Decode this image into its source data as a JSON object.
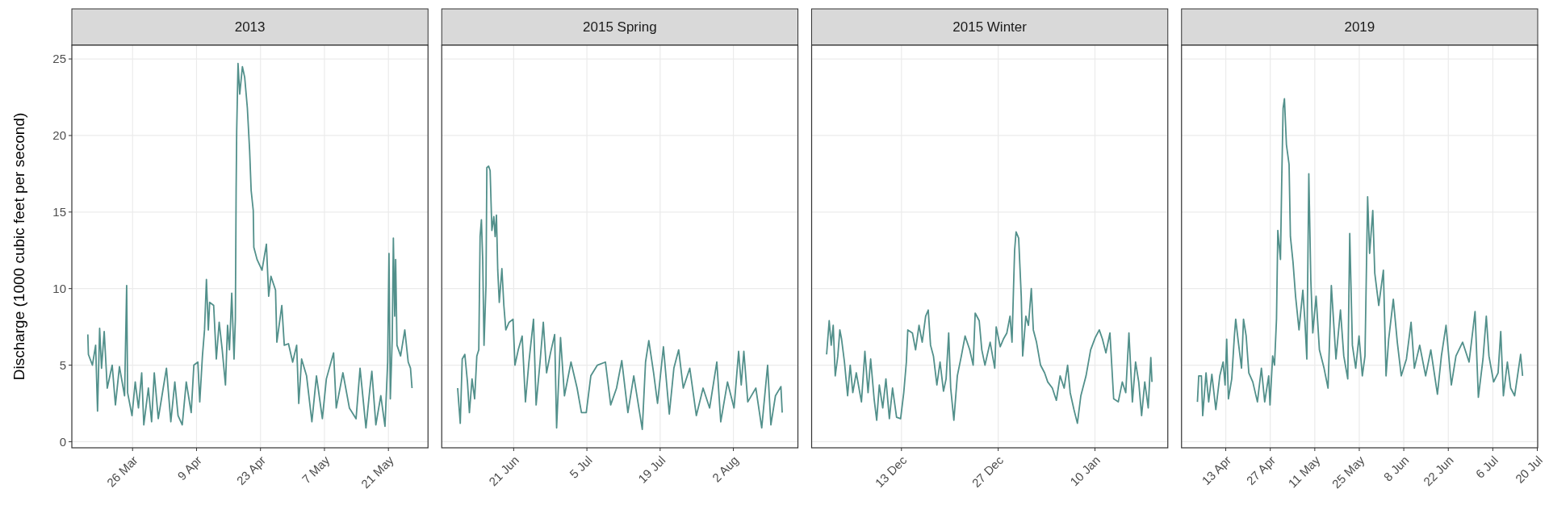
{
  "chart_data": [
    {
      "type": "line",
      "title": "2013",
      "ylabel": "Discharge (1000 cubic feet per second)",
      "color": "#52908b",
      "grid": true,
      "ylim": [
        -0.4,
        25.9
      ],
      "yticks": [
        0,
        5,
        10,
        15,
        20,
        25
      ],
      "xlim": [
        "2013-03-12T17:00",
        "2013-05-29T16:00"
      ],
      "xticks": [
        {
          "value": "2013-03-26",
          "label": "26 Mar"
        },
        {
          "value": "2013-04-09",
          "label": "9 Apr"
        },
        {
          "value": "2013-04-23",
          "label": "23 Apr"
        },
        {
          "value": "2013-05-07",
          "label": "7 May"
        },
        {
          "value": "2013-05-21",
          "label": "21 May"
        }
      ],
      "x": [
        "2013-03-16T05:00",
        "2013-03-16T08:00",
        "2013-03-17T05:00",
        "2013-03-17T22:00",
        "2013-03-18T08:00",
        "2013-03-18T19:00",
        "2013-03-19T05:00",
        "2013-03-19T19:00",
        "2013-03-20T11:00",
        "2013-03-21T13:00",
        "2013-03-22T06:00",
        "2013-03-23T03:00",
        "2013-03-24T06:00",
        "2013-03-24T17:00",
        "2013-03-24T22:00",
        "2013-03-25T21:00",
        "2013-03-26T14:00",
        "2013-03-27T07:00",
        "2013-03-28T00:00",
        "2013-03-28T11:00",
        "2013-03-29T11:00",
        "2013-03-30T04:00",
        "2013-03-30T18:00",
        "2013-03-31T15:00",
        "2013-04-01T17:00",
        "2013-04-02T10:00",
        "2013-04-03T09:00",
        "2013-04-04T06:00",
        "2013-04-04T23:00",
        "2013-04-05T21:00",
        "2013-04-06T18:00",
        "2013-04-07T20:00",
        "2013-04-08T10:00",
        "2013-04-09T07:00",
        "2013-04-09T17:00",
        "2013-04-10T07:00",
        "2013-04-10T18:00",
        "2013-04-11T04:00",
        "2013-04-11T14:00",
        "2013-04-11T21:00",
        "2013-04-12T18:00",
        "2013-04-13T08:00",
        "2013-04-13T23:00",
        "2013-04-14T15:00",
        "2013-04-15T08:00",
        "2013-04-15T19:00",
        "2013-04-16T05:00",
        "2013-04-16T17:00",
        "2013-04-17T05:00",
        "2013-04-17T12:00",
        "2013-04-17T16:00",
        "2013-04-17T19:00",
        "2013-04-18T02:00",
        "2013-04-18T11:00",
        "2013-04-19T01:00",
        "2013-04-19T13:00",
        "2013-04-20T03:00",
        "2013-04-20T15:00",
        "2013-04-20T23:00",
        "2013-04-21T10:00",
        "2013-04-21T13:00",
        "2013-04-22T06:00",
        "2013-04-23T08:00",
        "2013-04-24T07:00",
        "2013-04-24T19:00",
        "2013-04-25T07:00",
        "2013-04-26T07:00",
        "2013-04-26T14:00",
        "2013-04-27T16:00",
        "2013-04-28T05:00",
        "2013-04-29T03:00",
        "2013-04-30T01:00",
        "2013-04-30T22:00",
        "2013-05-01T09:00",
        "2013-05-02T00:00",
        "2013-05-03T02:00",
        "2013-05-04T06:00",
        "2013-05-05T06:00",
        "2013-05-06T13:00",
        "2013-05-07T10:00",
        "2013-05-09T00:00",
        "2013-05-09T14:00",
        "2013-05-11T01:00",
        "2013-05-12T11:00",
        "2013-05-13T22:00",
        "2013-05-14T19:00",
        "2013-05-16T02:00",
        "2013-05-16T23:00",
        "2013-05-17T09:00",
        "2013-05-18T06:00",
        "2013-05-19T08:00",
        "2013-05-20T06:00",
        "2013-05-20T20:00",
        "2013-05-21T03:00",
        "2013-05-21T10:00",
        "2013-05-21T20:00",
        "2013-05-22T02:00",
        "2013-05-22T09:00",
        "2013-05-22T14:00",
        "2013-05-22T21:00",
        "2013-05-23T16:00",
        "2013-05-24T14:00",
        "2013-05-25T08:00",
        "2013-05-25T20:00",
        "2013-05-26T04:00"
      ],
      "values": [
        7.0,
        5.7,
        5.0,
        6.3,
        2.0,
        7.4,
        4.8,
        7.2,
        3.5,
        5.0,
        2.4,
        4.9,
        3.0,
        10.2,
        3.2,
        1.7,
        3.9,
        2.2,
        4.5,
        1.1,
        3.5,
        1.3,
        4.5,
        1.5,
        3.5,
        4.8,
        1.3,
        3.9,
        1.7,
        1.1,
        3.9,
        1.9,
        5.0,
        5.2,
        2.6,
        5.6,
        7.3,
        10.6,
        7.3,
        9.1,
        8.9,
        5.4,
        7.8,
        6.0,
        3.7,
        7.6,
        6.0,
        9.7,
        5.4,
        8.0,
        16.4,
        20.3,
        24.7,
        22.7,
        24.5,
        23.8,
        21.8,
        19.0,
        16.4,
        15.1,
        12.7,
        11.9,
        11.2,
        12.9,
        9.5,
        10.8,
        9.9,
        6.5,
        8.9,
        6.3,
        6.4,
        5.2,
        6.3,
        2.5,
        5.4,
        4.3,
        1.3,
        4.3,
        1.5,
        4.1,
        5.8,
        2.2,
        4.5,
        2.2,
        1.5,
        4.8,
        0.9,
        3.5,
        4.6,
        1.1,
        3.0,
        1.0,
        5.2,
        12.3,
        2.8,
        6.7,
        13.3,
        8.2,
        11.9,
        6.3,
        5.6,
        7.3,
        5.2,
        4.8,
        3.5
      ]
    },
    {
      "type": "line",
      "title": "2015 Spring",
      "color": "#52908b",
      "grid": true,
      "tick_labels": "x",
      "ylim": [
        -0.4,
        25.9
      ],
      "yticks": [
        0,
        5,
        10,
        15,
        20,
        25
      ],
      "xlim": [
        "2015-06-07T06:00",
        "2015-08-14T08:00"
      ],
      "xticks": [
        {
          "value": "2015-06-21",
          "label": "21 Jun"
        },
        {
          "value": "2015-07-05",
          "label": "5 Jul"
        },
        {
          "value": "2015-07-19",
          "label": "19 Jul"
        },
        {
          "value": "2015-08-02",
          "label": "2 Aug"
        }
      ],
      "x": [
        "2015-06-10T07:00",
        "2015-06-10T19:00",
        "2015-06-11T04:00",
        "2015-06-11T16:00",
        "2015-06-12T04:00",
        "2015-06-12T13:00",
        "2015-06-13T01:00",
        "2015-06-13T13:00",
        "2015-06-13T23:00",
        "2015-06-14T08:00",
        "2015-06-14T14:00",
        "2015-06-14T20:00",
        "2015-06-15T02:00",
        "2015-06-15T08:00",
        "2015-06-15T17:00",
        "2015-06-15T21:00",
        "2015-06-16T05:00",
        "2015-06-16T12:00",
        "2015-06-16T20:00",
        "2015-06-17T05:00",
        "2015-06-17T11:00",
        "2015-06-17T17:00",
        "2015-06-17T23:00",
        "2015-06-18T06:00",
        "2015-06-18T18:00",
        "2015-06-19T03:00",
        "2015-06-19T12:00",
        "2015-06-20T03:00",
        "2015-06-20T21:00",
        "2015-06-21T06:00",
        "2015-06-21T21:00",
        "2015-06-22T15:00",
        "2015-06-23T06:00",
        "2015-06-23T22:00",
        "2015-06-24T19:00",
        "2015-06-25T07:00",
        "2015-06-26T01:00",
        "2015-06-26T16:00",
        "2015-06-27T07:00",
        "2015-06-28T01:00",
        "2015-06-28T20:00",
        "2015-06-29T05:00",
        "2015-06-29T23:00",
        "2015-06-30T17:00",
        "2015-07-01T23:00",
        "2015-07-03T03:00",
        "2015-07-03T23:00",
        "2015-07-04T21:00",
        "2015-07-05T18:00",
        "2015-07-07T00:00",
        "2015-07-08T13:00",
        "2015-07-09T13:00",
        "2015-07-10T16:00",
        "2015-07-11T16:00",
        "2015-07-12T20:00",
        "2015-07-13T23:00",
        "2015-07-15T14:00",
        "2015-07-16T05:00",
        "2015-07-16T20:00",
        "2015-07-17T18:00",
        "2015-07-18T12:00",
        "2015-07-19T15:00",
        "2015-07-20T18:00",
        "2015-07-21T15:00",
        "2015-07-22T13:00",
        "2015-07-23T10:00",
        "2015-07-24T16:00",
        "2015-07-25T22:00",
        "2015-07-27T05:00",
        "2015-07-28T11:00",
        "2015-07-29T20:00",
        "2015-07-30T14:00",
        "2015-07-31T21:00",
        "2015-08-02T03:00",
        "2015-08-03T00:00",
        "2015-08-03T12:00",
        "2015-08-04T00:00",
        "2015-08-04T18:00",
        "2015-08-06T07:00",
        "2015-08-07T10:00",
        "2015-08-08T13:00",
        "2015-08-09T04:00",
        "2015-08-10T01:00",
        "2015-08-11T02:00",
        "2015-08-11T08:00"
      ],
      "values": [
        3.5,
        1.2,
        5.4,
        5.7,
        3.9,
        1.9,
        4.1,
        2.8,
        5.6,
        6.0,
        13.4,
        14.5,
        11.9,
        6.3,
        10.2,
        17.9,
        18.0,
        17.7,
        13.8,
        14.7,
        13.4,
        14.8,
        11.2,
        9.1,
        11.3,
        8.9,
        7.3,
        7.8,
        8.0,
        5.0,
        6.0,
        6.9,
        2.6,
        5.2,
        8.0,
        2.4,
        5.2,
        7.8,
        4.5,
        5.8,
        7.0,
        0.9,
        6.8,
        3.0,
        5.2,
        3.5,
        1.9,
        1.9,
        4.3,
        5.0,
        5.2,
        2.4,
        3.5,
        5.3,
        1.9,
        4.3,
        0.8,
        5.2,
        6.6,
        4.5,
        2.5,
        6.2,
        1.8,
        4.8,
        6.0,
        3.5,
        4.8,
        1.7,
        3.5,
        2.2,
        5.2,
        1.3,
        3.9,
        2.2,
        5.9,
        3.7,
        5.9,
        2.6,
        3.5,
        0.9,
        5.0,
        1.1,
        3.0,
        3.6,
        1.9
      ]
    },
    {
      "type": "line",
      "title": "2015 Winter",
      "color": "#52908b",
      "grid": true,
      "tick_labels": "x",
      "ylim": [
        -0.4,
        25.9
      ],
      "yticks": [
        0,
        5,
        10,
        15,
        20,
        25
      ],
      "xlim": [
        "2015-11-30T00:00",
        "2016-01-20T13:00"
      ],
      "xticks": [
        {
          "value": "2015-12-13",
          "label": "13 Dec"
        },
        {
          "value": "2015-12-27",
          "label": "27 Dec"
        },
        {
          "value": "2016-01-10",
          "label": "10 Jan"
        }
      ],
      "x": [
        "2015-12-02T04:00",
        "2015-12-02T13:00",
        "2015-12-02T20:00",
        "2015-12-03T03:00",
        "2015-12-03T10:00",
        "2015-12-03T19:00",
        "2015-12-04T02:00",
        "2015-12-04T08:00",
        "2015-12-04T18:00",
        "2015-12-05T05:00",
        "2015-12-05T14:00",
        "2015-12-05T23:00",
        "2015-12-06T11:00",
        "2015-12-07T05:00",
        "2015-12-07T17:00",
        "2015-12-08T04:00",
        "2015-12-08T13:00",
        "2015-12-09T01:00",
        "2015-12-09T10:00",
        "2015-12-09T19:00",
        "2015-12-10T07:00",
        "2015-12-10T18:00",
        "2015-12-11T06:00",
        "2015-12-11T17:00",
        "2015-12-12T07:00",
        "2015-12-12T21:00",
        "2015-12-13T08:00",
        "2015-12-13T17:00",
        "2015-12-13T22:00",
        "2015-12-14T14:00",
        "2015-12-15T01:00",
        "2015-12-15T13:00",
        "2015-12-16T00:00",
        "2015-12-16T12:00",
        "2015-12-16T21:00",
        "2015-12-17T05:00",
        "2015-12-17T15:00",
        "2015-12-18T03:00",
        "2015-12-18T14:00",
        "2015-12-19T02:00",
        "2015-12-19T11:00",
        "2015-12-19T20:00",
        "2015-12-20T03:00",
        "2015-12-20T14:00",
        "2015-12-21T02:00",
        "2015-12-21T16:00",
        "2015-12-22T05:00",
        "2015-12-22T21:00",
        "2015-12-23T09:00",
        "2015-12-23T16:00",
        "2015-12-24T06:00",
        "2015-12-24T15:00",
        "2015-12-25T02:00",
        "2015-12-25T20:00",
        "2015-12-26T12:00",
        "2015-12-26T17:00",
        "2015-12-27T07:00",
        "2015-12-27T18:00",
        "2015-12-28T06:00",
        "2015-12-28T17:00",
        "2015-12-29T00:00",
        "2015-12-29T05:00",
        "2015-12-29T09:00",
        "2015-12-29T14:00",
        "2015-12-29T23:00",
        "2015-12-30T08:00",
        "2015-12-30T13:00",
        "2015-12-31T00:00",
        "2015-12-31T09:00",
        "2015-12-31T19:00",
        "2016-01-01T02:00",
        "2016-01-01T13:00",
        "2016-01-02T03:00",
        "2016-01-02T17:00",
        "2016-01-03T04:00",
        "2016-01-03T20:00",
        "2016-01-04T10:00",
        "2016-01-04T23:00",
        "2016-01-05T13:00",
        "2016-01-06T01:00",
        "2016-01-06T10:00",
        "2016-01-06T23:00",
        "2016-01-07T11:00",
        "2016-01-07T23:00",
        "2016-01-08T17:00",
        "2016-01-09T09:00",
        "2016-01-10T01:00",
        "2016-01-10T15:00",
        "2016-01-11T02:00",
        "2016-01-11T14:00",
        "2016-01-12T04:00",
        "2016-01-12T17:00",
        "2016-01-13T09:00",
        "2016-01-13T23:00",
        "2016-01-14T11:00",
        "2016-01-14T22:00",
        "2016-01-15T10:00",
        "2016-01-15T21:00",
        "2016-01-16T08:00",
        "2016-01-16T18:00",
        "2016-01-17T05:00",
        "2016-01-17T17:00",
        "2016-01-18T02:00",
        "2016-01-18T06:00"
      ],
      "values": [
        5.7,
        7.9,
        6.3,
        7.6,
        4.3,
        5.6,
        7.3,
        6.7,
        5.2,
        3.0,
        5.0,
        3.2,
        4.5,
        2.6,
        5.9,
        3.2,
        5.4,
        2.8,
        1.4,
        3.7,
        2.2,
        4.1,
        1.5,
        3.5,
        1.6,
        1.5,
        3.2,
        5.2,
        7.3,
        7.1,
        6.0,
        7.6,
        6.5,
        8.2,
        8.6,
        6.3,
        5.6,
        3.7,
        5.2,
        3.3,
        4.1,
        7.1,
        3.5,
        1.4,
        4.3,
        5.6,
        6.9,
        6.0,
        5.0,
        8.4,
        7.9,
        6.0,
        5.0,
        6.5,
        4.8,
        7.5,
        6.2,
        6.7,
        7.1,
        8.2,
        6.5,
        9.9,
        12.5,
        13.7,
        13.3,
        9.5,
        5.6,
        8.2,
        7.6,
        10.0,
        7.3,
        6.5,
        5.0,
        4.5,
        3.9,
        3.5,
        2.7,
        4.3,
        3.5,
        5.0,
        3.2,
        2.1,
        1.2,
        3.0,
        4.3,
        6.0,
        6.8,
        7.3,
        6.7,
        5.8,
        7.1,
        2.8,
        2.6,
        3.9,
        3.2,
        7.1,
        2.6,
        5.2,
        3.9,
        1.7,
        3.9,
        2.2,
        5.5,
        3.9
      ]
    },
    {
      "type": "line",
      "title": "2019",
      "color": "#52908b",
      "grid": true,
      "tick_labels": "x",
      "ylim": [
        -0.4,
        25.9
      ],
      "yticks": [
        0,
        5,
        10,
        15,
        20,
        25
      ],
      "xlim": [
        "2019-03-30T02:00",
        "2019-07-20T03:00"
      ],
      "xticks": [
        {
          "value": "2019-04-13",
          "label": "13 Apr"
        },
        {
          "value": "2019-04-27",
          "label": "27 Apr"
        },
        {
          "value": "2019-05-11",
          "label": "11 May"
        },
        {
          "value": "2019-05-25",
          "label": "25 May"
        },
        {
          "value": "2019-06-08",
          "label": "8 Jun"
        },
        {
          "value": "2019-06-22",
          "label": "22 Jun"
        },
        {
          "value": "2019-07-06",
          "label": "6 Jul"
        },
        {
          "value": "2019-07-20",
          "label": "20 Jul"
        }
      ],
      "x": [
        "2019-04-04T02:00",
        "2019-04-04T12:00",
        "2019-04-05T08:00",
        "2019-04-05T18:00",
        "2019-04-06T19:00",
        "2019-04-07T15:00",
        "2019-04-08T15:00",
        "2019-04-09T21:00",
        "2019-04-11T03:00",
        "2019-04-12T04:00",
        "2019-04-12T19:00",
        "2019-04-13T07:00",
        "2019-04-13T20:00",
        "2019-04-14T21:00",
        "2019-04-15T17:00",
        "2019-04-16T03:00",
        "2019-04-16T23:00",
        "2019-04-17T23:00",
        "2019-04-18T14:00",
        "2019-04-19T10:00",
        "2019-04-20T06:00",
        "2019-04-21T12:00",
        "2019-04-22T23:00",
        "2019-04-24T05:00",
        "2019-04-25T06:00",
        "2019-04-26T12:00",
        "2019-04-26T22:00",
        "2019-04-27T18:00",
        "2019-04-28T08:00",
        "2019-04-28T23:00",
        "2019-04-29T09:00",
        "2019-04-30T05:00",
        "2019-04-30T15:00",
        "2019-05-01T01:00",
        "2019-05-01T11:00",
        "2019-05-02T02:00",
        "2019-05-02T22:00",
        "2019-05-03T08:00",
        "2019-05-04T04:00",
        "2019-05-04T23:00",
        "2019-05-06T01:00",
        "2019-05-07T06:00",
        "2019-05-07T22:00",
        "2019-05-08T12:00",
        "2019-05-09T03:00",
        "2019-05-09T18:00",
        "2019-05-10T09:00",
        "2019-05-11T10:00",
        "2019-05-12T11:00",
        "2019-05-13T22:00",
        "2019-05-15T04:00",
        "2019-05-16T05:00",
        "2019-05-17T16:00",
        "2019-05-19T02:00",
        "2019-05-20T03:00",
        "2019-05-21T09:00",
        "2019-05-22T00:00",
        "2019-05-22T20:00",
        "2019-05-23T21:00",
        "2019-05-24T22:00",
        "2019-05-25T23:00",
        "2019-05-26T19:00",
        "2019-05-27T15:00",
        "2019-05-28T06:00",
        "2019-05-29T06:00",
        "2019-05-29T21:00",
        "2019-05-31T03:00",
        "2019-06-01T14:00",
        "2019-06-02T10:00",
        "2019-06-03T06:00",
        "2019-06-04T17:00",
        "2019-06-05T23:00",
        "2019-06-07T05:00",
        "2019-06-08T20:00",
        "2019-06-10T07:00",
        "2019-06-11T08:00",
        "2019-06-13T00:00",
        "2019-06-14T21:00",
        "2019-06-16T12:00",
        "2019-06-18T14:00",
        "2019-06-19T20:00",
        "2019-06-21T07:00",
        "2019-06-22T23:00",
        "2019-06-24T10:00",
        "2019-06-26T12:00",
        "2019-06-28T13:00",
        "2019-06-30T10:00",
        "2019-07-01T11:00",
        "2019-07-02T22:00",
        "2019-07-03T23:00",
        "2019-07-04T19:00",
        "2019-07-06T06:00",
        "2019-07-07T16:00",
        "2019-07-08T12:00",
        "2019-07-09T08:00",
        "2019-07-10T14:00",
        "2019-07-11T15:00",
        "2019-07-12T21:00",
        "2019-07-14T18:00",
        "2019-07-15T09:00"
      ],
      "values": [
        2.6,
        4.3,
        4.3,
        1.7,
        4.5,
        2.6,
        4.4,
        2.1,
        4.3,
        5.2,
        3.7,
        6.7,
        2.8,
        4.1,
        6.9,
        8.0,
        6.5,
        4.8,
        8.0,
        6.9,
        4.5,
        3.9,
        2.6,
        4.8,
        2.6,
        4.3,
        2.4,
        5.6,
        5.0,
        8.0,
        13.8,
        11.9,
        17.3,
        21.8,
        22.4,
        19.4,
        18.1,
        13.4,
        11.7,
        9.5,
        7.3,
        9.9,
        7.8,
        5.4,
        17.5,
        10.6,
        7.1,
        9.5,
        6.0,
        4.8,
        3.5,
        10.2,
        5.4,
        8.6,
        5.6,
        4.1,
        13.6,
        6.3,
        4.8,
        6.9,
        4.3,
        5.6,
        16.0,
        12.3,
        15.1,
        11.0,
        8.9,
        11.2,
        4.3,
        6.7,
        9.3,
        6.5,
        4.3,
        5.4,
        7.8,
        4.8,
        6.3,
        4.3,
        6.0,
        3.1,
        5.6,
        7.6,
        3.7,
        5.6,
        6.5,
        5.2,
        8.5,
        2.9,
        5.4,
        8.2,
        5.6,
        3.9,
        4.5,
        7.2,
        3.0,
        5.2,
        3.5,
        3.0,
        5.7,
        4.3
      ]
    }
  ]
}
